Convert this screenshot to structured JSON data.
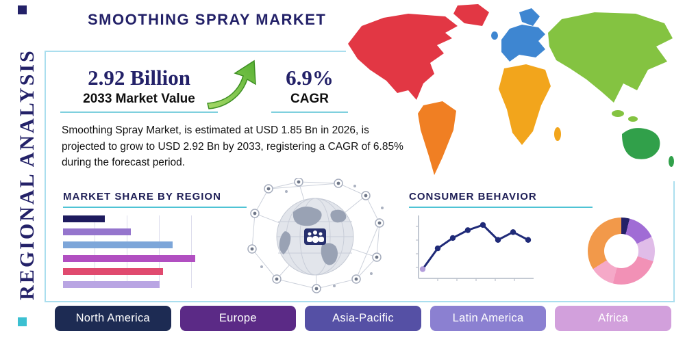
{
  "page": {
    "title": "SMOOTHING SPRAY MARKET",
    "side_label": "REGIONAL ANALYSIS"
  },
  "stats": {
    "market_value": "2.92 Billion",
    "market_value_label": "2033 Market Value",
    "cagr_value": "6.9%",
    "cagr_label": "CAGR"
  },
  "description": "Smoothing Spray Market, is estimated at USD 1.85 Bn in 2026, is projected to grow to USD 2.92 Bn by 2033, registering a CAGR of 6.85% during the forecast period.",
  "sections": {
    "market_share": "MARKET SHARE BY REGION",
    "consumer_behavior": "CONSUMER BEHAVIOR"
  },
  "regions": [
    {
      "label": "North America",
      "color": "#1d2b53"
    },
    {
      "label": "Europe",
      "color": "#5b2a86"
    },
    {
      "label": "Asia-Pacific",
      "color": "#5550a5"
    },
    {
      "label": "Latin America",
      "color": "#8b80d1"
    },
    {
      "label": "Africa",
      "color": "#d2a0dc"
    }
  ],
  "map": {
    "colors": {
      "north_america": "#e23744",
      "south_america": "#f07f23",
      "europe": "#3e86d1",
      "africa": "#f2a51c",
      "asia": "#84c341",
      "australia": "#31a04a"
    }
  },
  "accent": {
    "teal": "#4fc3d4",
    "navy": "#232168",
    "arrow_green": "#7ac143"
  },
  "chart_data": [
    {
      "type": "bar",
      "title": "MARKET SHARE BY REGION",
      "orientation": "horizontal",
      "values": [
        13,
        21,
        34,
        41,
        31,
        30
      ],
      "colors": [
        "#1e1b5e",
        "#9575cd",
        "#7da6d9",
        "#b14fc1",
        "#e04a6f",
        "#b9a5e3"
      ],
      "xlim": [
        0,
        45
      ],
      "grid": true,
      "categories_labeled": false
    },
    {
      "type": "line",
      "title": "CONSUMER BEHAVIOR",
      "x": [
        1,
        2,
        3,
        4,
        5,
        6,
        7,
        8
      ],
      "y": [
        10,
        42,
        58,
        70,
        78,
        55,
        67,
        55
      ],
      "ylim": [
        0,
        100
      ],
      "line_color": "#1f2a78",
      "marker_color": "#1f2a78",
      "first_marker_color": "#b39ddb",
      "axes_labeled": false
    },
    {
      "type": "pie",
      "donut": true,
      "values": [
        4,
        14,
        12,
        24,
        12,
        34
      ],
      "colors": [
        "#232168",
        "#a06cd5",
        "#e0bce8",
        "#f291b6",
        "#f5a9c8",
        "#f2994a"
      ],
      "labels_shown": false
    }
  ]
}
